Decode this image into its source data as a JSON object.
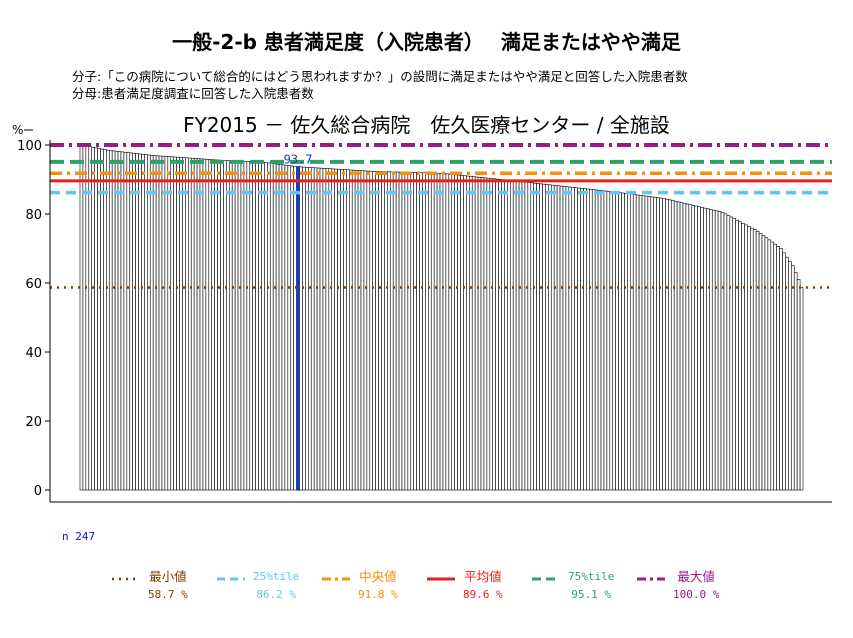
{
  "header": {
    "title": "一般-2-b 患者満足度（入院患者）　 満足またはやや満足",
    "numerator": "分子:「この病院について総合的にはどう思われますか？」の設問に満足またはやや満足と回答した入院患者数",
    "denominator": "分母:患者満足度調査に回答した入院患者数",
    "subtitle": "FY2015 － 佐久総合病院　佐久医療センター / 全施設"
  },
  "chart_data": {
    "type": "bar",
    "sorted": "descending",
    "n": 247,
    "n_label": "n  247",
    "ylabel": "%",
    "ylim": [
      0,
      100
    ],
    "yticks": [
      "0",
      "20",
      "40",
      "60",
      "80",
      "100"
    ],
    "highlight": {
      "rank": 75,
      "value": 93.7,
      "label": "93.7",
      "color": "#1a3fbf"
    },
    "value_profile": [
      {
        "rank": 1,
        "value": 100.0
      },
      {
        "rank": 10,
        "value": 98.5
      },
      {
        "rank": 25,
        "value": 97.0
      },
      {
        "rank": 50,
        "value": 95.5
      },
      {
        "rank": 62,
        "value": 95.1
      },
      {
        "rank": 75,
        "value": 93.7
      },
      {
        "rank": 100,
        "value": 92.4
      },
      {
        "rank": 124,
        "value": 91.8
      },
      {
        "rank": 150,
        "value": 89.5
      },
      {
        "rank": 185,
        "value": 86.2
      },
      {
        "rank": 200,
        "value": 84.5
      },
      {
        "rank": 220,
        "value": 80.5
      },
      {
        "rank": 232,
        "value": 75.0
      },
      {
        "rank": 240,
        "value": 70.0
      },
      {
        "rank": 244,
        "value": 65.0
      },
      {
        "rank": 246,
        "value": 61.0
      },
      {
        "rank": 247,
        "value": 58.7
      }
    ],
    "reference_lines": [
      {
        "key": "min",
        "label": "最小値",
        "value": 58.7,
        "value_text": "58.7 %",
        "color": "#7b3f00",
        "dash": "2,5"
      },
      {
        "key": "p25",
        "label": "25%tile",
        "value": 86.2,
        "value_text": "86.2 %",
        "color": "#5bc8f5",
        "dash": "10,6"
      },
      {
        "key": "median",
        "label": "中央値",
        "value": 91.8,
        "value_text": "91.8 %",
        "color": "#f5900a",
        "dash": "12,5,3,5"
      },
      {
        "key": "mean",
        "label": "平均値",
        "value": 89.6,
        "value_text": "89.6 %",
        "color": "#e8201a",
        "dash": ""
      },
      {
        "key": "p75",
        "label": "75%tile",
        "value": 95.1,
        "value_text": "95.1 %",
        "color": "#2ea06a",
        "dash": "14,6"
      },
      {
        "key": "max",
        "label": "最大値",
        "value": 100.0,
        "value_text": "100.0 %",
        "color": "#9a1a8a",
        "dash": "14,5,3,5"
      }
    ]
  }
}
